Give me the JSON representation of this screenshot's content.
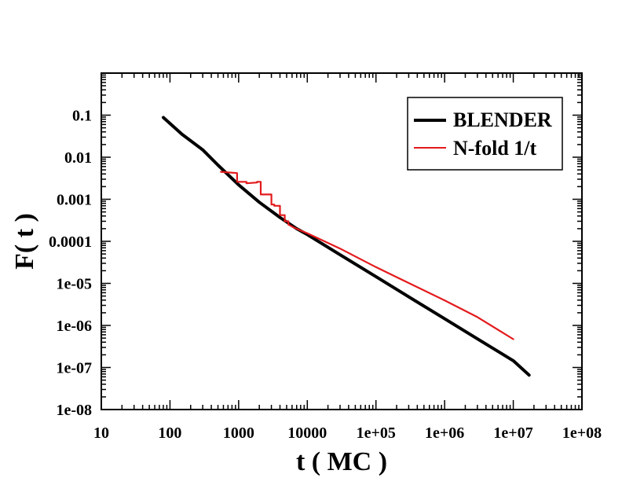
{
  "chart_data": {
    "type": "line",
    "xlabel": "t ( MC )",
    "ylabel": "F( t )",
    "xscale": "log",
    "yscale": "log",
    "xlim": [
      10,
      100000000
    ],
    "ylim": [
      1e-08,
      1
    ],
    "grid": false,
    "legend_position": "top-right",
    "x_tick_labels": [
      "10",
      "100",
      "1000",
      "10000",
      "1e+05",
      "1e+06",
      "1e+07",
      "1e+08"
    ],
    "y_tick_labels": [
      "1e-08",
      "1e-07",
      "1e-06",
      "1e-05",
      "0.0001",
      "0.001",
      "0.01",
      "0.1"
    ],
    "series": [
      {
        "name": "BLENDER",
        "color": "#000000",
        "x": [
          80,
          150,
          300,
          500,
          1000,
          2000,
          4000,
          7000,
          10000,
          30000,
          100000,
          300000,
          1000000,
          3000000,
          10000000,
          17000000
        ],
        "y": [
          0.088,
          0.035,
          0.015,
          0.0065,
          0.0022,
          0.00085,
          0.00037,
          0.0002,
          0.000145,
          4.8e-05,
          1.45e-05,
          4.8e-06,
          1.45e-06,
          4.8e-07,
          1.45e-07,
          6.6e-08
        ]
      },
      {
        "name": "N-fold 1/t",
        "color": "#e31a1c",
        "x": [
          550,
          950,
          950,
          1300,
          1300,
          1850,
          1850,
          2100,
          2100,
          3000,
          3000,
          3300,
          3300,
          4000,
          4000,
          4700,
          4700,
          5300,
          5300,
          6500,
          10000,
          30000,
          100000,
          300000,
          1000000,
          3000000,
          10000000
        ],
        "y": [
          0.0045,
          0.0042,
          0.0026,
          0.0026,
          0.0024,
          0.0025,
          0.0026,
          0.0026,
          0.0013,
          0.0013,
          0.00075,
          0.00075,
          0.0007,
          0.0007,
          0.00042,
          0.00042,
          0.0003,
          0.0003,
          0.00025,
          0.00021,
          0.000155,
          6.72e-05,
          2.44e-05,
          1.02e-05,
          3.94e-06,
          1.58e-06,
          4.7e-07
        ]
      }
    ]
  }
}
